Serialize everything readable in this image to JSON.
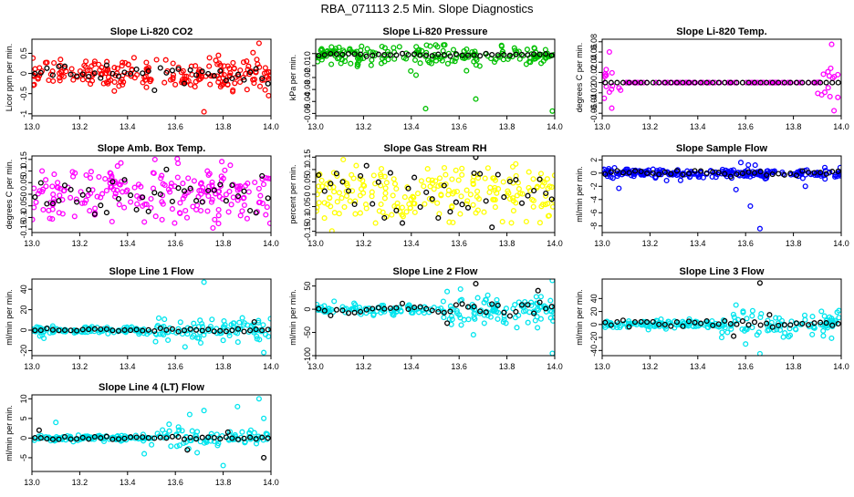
{
  "figure_title": "RBA_071113  2.5 Min. Slope Diagnostics",
  "chart_data": [
    {
      "type": "scatter",
      "title": "Slope Li-820 CO2",
      "xlabel": "",
      "ylabel": "Licor ppm per min.",
      "xlim": [
        13.0,
        14.0
      ],
      "ylim": [
        -1.05,
        0.85
      ],
      "xticks": [
        13.0,
        13.2,
        13.4,
        13.6,
        13.8,
        14.0
      ],
      "xticklabels": [
        "13.0",
        "13.2",
        "13.4",
        "13.6",
        "13.8",
        "14.0"
      ],
      "yticks": [
        -1.0,
        -0.5,
        0.0,
        0.5
      ],
      "yticklabels": [
        "-1",
        "-0.5",
        "0",
        "0.5"
      ],
      "series": [
        {
          "name": "points",
          "color": "#ff0000",
          "base": 0.0,
          "spread": 0.18,
          "outliers": [
            [
              13.95,
              0.75
            ],
            [
              13.72,
              -0.95
            ],
            [
              13.84,
              -0.45
            ],
            [
              13.78,
              0.45
            ],
            [
              13.99,
              -0.55
            ]
          ],
          "n": 220
        },
        {
          "name": "black",
          "color": "#000000",
          "base": 0.0,
          "spread": 0.12,
          "outliers": [],
          "n": 40
        }
      ]
    },
    {
      "type": "scatter",
      "title": "Slope Li-820 Pressure",
      "xlabel": "",
      "ylabel": "kPa per min.",
      "xlim": [
        13.0,
        14.0
      ],
      "ylim": [
        -0.052,
        0.012
      ],
      "xticks": [
        13.0,
        13.2,
        13.4,
        13.6,
        13.8,
        14.0
      ],
      "xticklabels": [
        "13.0",
        "13.2",
        "13.4",
        "13.6",
        "13.8",
        "14.0"
      ],
      "yticks": [
        -0.05,
        -0.04,
        -0.03,
        -0.02,
        -0.01,
        0.0
      ],
      "yticklabels": [
        "-0.05",
        "-0.04",
        "-0.03",
        "-0.02",
        "-0.01",
        "0"
      ],
      "series": [
        {
          "name": "points",
          "color": "#00c000",
          "base": -0.001,
          "spread": 0.004,
          "outliers": [
            [
              13.46,
              -0.046
            ],
            [
              13.67,
              -0.038
            ],
            [
              13.99,
              -0.048
            ],
            [
              13.42,
              -0.018
            ]
          ],
          "n": 200
        },
        {
          "name": "black",
          "color": "#000000",
          "base": -0.001,
          "spread": 0.0008,
          "outliers": [],
          "n": 40
        }
      ]
    },
    {
      "type": "scatter",
      "title": "Slope Li-820 Temp.",
      "xlabel": "",
      "ylabel": "degrees C per min.",
      "xlim": [
        13.0,
        14.0
      ],
      "ylim": [
        -0.065,
        0.085
      ],
      "xticks": [
        13.0,
        13.2,
        13.4,
        13.6,
        13.8,
        14.0
      ],
      "xticklabels": [
        "13.0",
        "13.2",
        "13.4",
        "13.6",
        "13.8",
        "14.0"
      ],
      "yticks": [
        -0.06,
        -0.04,
        -0.02,
        0.0,
        0.02,
        0.04,
        0.06,
        0.08
      ],
      "yticklabels": [
        "-0.06",
        "-0.04",
        "-0.02",
        "0",
        "0.02",
        "0.04",
        "0.06",
        "0.08"
      ],
      "series": [
        {
          "name": "points",
          "color": "#ff00ff",
          "base": 0.0,
          "spread": 0.02,
          "outliers": [
            [
              13.03,
              0.06
            ],
            [
              13.04,
              -0.05
            ],
            [
              13.96,
              0.075
            ],
            [
              13.97,
              -0.055
            ]
          ],
          "n": 120
        },
        {
          "name": "black",
          "color": "#000000",
          "base": 0.0,
          "spread": 0.0,
          "outliers": [],
          "n": 40
        }
      ]
    },
    {
      "type": "scatter",
      "title": "Slope Amb. Box Temp.",
      "xlabel": "",
      "ylabel": "degrees C per min.",
      "xlim": [
        13.0,
        14.0
      ],
      "ylim": [
        -0.165,
        0.165
      ],
      "xticks": [
        13.0,
        13.2,
        13.4,
        13.6,
        13.8,
        14.0
      ],
      "xticklabels": [
        "13.0",
        "13.2",
        "13.4",
        "13.6",
        "13.8",
        "14.0"
      ],
      "yticks": [
        -0.15,
        -0.1,
        -0.05,
        0.0,
        0.05,
        0.1,
        0.15
      ],
      "yticklabels": [
        "-0.15",
        "-0.1",
        "-0.05",
        "0",
        "0.05",
        "0.1",
        "0.15"
      ],
      "series": [
        {
          "name": "points",
          "color": "#ff00ff",
          "base": 0.0,
          "spread": 0.06,
          "outliers": [],
          "n": 220
        },
        {
          "name": "black",
          "color": "#000000",
          "base": 0.0,
          "spread": 0.05,
          "outliers": [],
          "n": 40
        }
      ]
    },
    {
      "type": "scatter",
      "title": "Slope Gas Stream RH",
      "xlabel": "",
      "ylabel": "percent per min.",
      "xlim": [
        13.0,
        14.0
      ],
      "ylim": [
        -0.155,
        0.155
      ],
      "xticks": [
        13.0,
        13.2,
        13.4,
        13.6,
        13.8,
        14.0
      ],
      "xticklabels": [
        "13.0",
        "13.2",
        "13.4",
        "13.6",
        "13.8",
        "14.0"
      ],
      "yticks": [
        -0.15,
        -0.1,
        -0.05,
        0.0,
        0.05,
        0.1,
        0.15
      ],
      "yticklabels": [
        "-0.15",
        "-0.1",
        "-0.05",
        "0",
        "0.05",
        "0.1",
        "0.15"
      ],
      "series": [
        {
          "name": "points",
          "color": "#ffff00",
          "base": 0.0,
          "spread": 0.06,
          "outliers": [],
          "n": 220
        },
        {
          "name": "black",
          "color": "#000000",
          "base": 0.0,
          "spread": 0.06,
          "outliers": [
            [
              13.67,
              0.15
            ]
          ],
          "n": 40
        }
      ]
    },
    {
      "type": "scatter",
      "title": "Slope Sample Flow",
      "xlabel": "",
      "ylabel": "ml/min per min.",
      "xlim": [
        13.0,
        14.0
      ],
      "ylim": [
        -9,
        2.6
      ],
      "xticks": [
        13.0,
        13.2,
        13.4,
        13.6,
        13.8,
        14.0
      ],
      "xticklabels": [
        "13.0",
        "13.2",
        "13.4",
        "13.6",
        "13.8",
        "14.0"
      ],
      "yticks": [
        -8,
        -6,
        -4,
        -2,
        0,
        2
      ],
      "yticklabels": [
        "-8",
        "-6",
        "-4",
        "-2",
        "0",
        "2"
      ],
      "series": [
        {
          "name": "points",
          "color": "#0000ff",
          "base": 0.0,
          "spread": 0.35,
          "outliers": [
            [
              13.62,
              -5.0
            ],
            [
              13.66,
              -8.4
            ],
            [
              13.58,
              1.6
            ],
            [
              13.64,
              1.2
            ],
            [
              13.07,
              -2.3
            ],
            [
              13.85,
              -2.0
            ],
            [
              13.56,
              -2.5
            ]
          ],
          "n": 240
        },
        {
          "name": "black",
          "color": "#000000",
          "base": 0.0,
          "spread": 0.2,
          "outliers": [],
          "n": 40
        }
      ]
    },
    {
      "type": "scatter",
      "title": "Slope Line 1 Flow",
      "xlabel": "",
      "ylabel": "ml/min per min.",
      "xlim": [
        13.0,
        14.0
      ],
      "ylim": [
        -25,
        50
      ],
      "xticks": [
        13.0,
        13.2,
        13.4,
        13.6,
        13.8,
        14.0
      ],
      "xticklabels": [
        "13.0",
        "13.2",
        "13.4",
        "13.6",
        "13.8",
        "14.0"
      ],
      "yticks": [
        -20,
        0,
        20,
        40
      ],
      "yticklabels": [
        "-20",
        "0",
        "20",
        "40"
      ],
      "series": [
        {
          "name": "points",
          "color": "#00e5ee",
          "base": 0.0,
          "spread": 3.5,
          "outliers": [
            [
              13.72,
              47
            ],
            [
              13.97,
              -22
            ],
            [
              13.8,
              -10
            ],
            [
              13.88,
              12
            ],
            [
              13.05,
              -8
            ]
          ],
          "n": 200
        },
        {
          "name": "black",
          "color": "#000000",
          "base": 0.0,
          "spread": 0.8,
          "outliers": [
            [
              13.93,
              8
            ]
          ],
          "n": 40
        }
      ]
    },
    {
      "type": "scatter",
      "title": "Slope Line 2 Flow",
      "xlabel": "",
      "ylabel": "ml/min per min.",
      "xlim": [
        13.0,
        14.0
      ],
      "ylim": [
        -100,
        65
      ],
      "xticks": [
        13.0,
        13.2,
        13.4,
        13.6,
        13.8,
        14.0
      ],
      "xticklabels": [
        "13.0",
        "13.2",
        "13.4",
        "13.6",
        "13.8",
        "14.0"
      ],
      "yticks": [
        -100,
        -50,
        0,
        50
      ],
      "yticklabels": [
        "-100",
        "-50",
        "0",
        "50"
      ],
      "series": [
        {
          "name": "points",
          "color": "#00e5ee",
          "base": 0.0,
          "spread": 10,
          "outliers": [
            [
              13.99,
              62
            ],
            [
              13.99,
              -95
            ],
            [
              13.66,
              -55
            ],
            [
              13.55,
              38
            ],
            [
              13.72,
              30
            ]
          ],
          "n": 200
        },
        {
          "name": "black",
          "color": "#000000",
          "base": 0.0,
          "spread": 6,
          "outliers": [
            [
              13.67,
              55
            ],
            [
              13.93,
              40
            ],
            [
              13.55,
              -30
            ]
          ],
          "n": 40
        }
      ]
    },
    {
      "type": "scatter",
      "title": "Slope Line 3 Flow",
      "xlabel": "",
      "ylabel": "ml/min per min.",
      "xlim": [
        13.0,
        14.0
      ],
      "ylim": [
        -48,
        70
      ],
      "xticks": [
        13.0,
        13.2,
        13.4,
        13.6,
        13.8,
        14.0
      ],
      "xticklabels": [
        "13.0",
        "13.2",
        "13.4",
        "13.6",
        "13.8",
        "14.0"
      ],
      "yticks": [
        -40,
        -20,
        0,
        20,
        40
      ],
      "yticklabels": [
        "-40",
        "-20",
        "0",
        "20",
        "40"
      ],
      "series": [
        {
          "name": "points",
          "color": "#00e5ee",
          "base": 0.0,
          "spread": 6,
          "outliers": [
            [
              13.66,
              -45
            ],
            [
              13.56,
              30
            ],
            [
              13.6,
              -30
            ],
            [
              13.5,
              -20
            ]
          ],
          "n": 200
        },
        {
          "name": "black",
          "color": "#000000",
          "base": 0.0,
          "spread": 3,
          "outliers": [
            [
              13.66,
              64
            ],
            [
              13.55,
              -18
            ],
            [
              13.7,
              15
            ]
          ],
          "n": 40
        }
      ]
    },
    {
      "type": "scatter",
      "title": "Slope Line 4 (LT) Flow",
      "xlabel": "",
      "ylabel": "ml/min per min.",
      "xlim": [
        13.0,
        14.0
      ],
      "ylim": [
        -8.5,
        11
      ],
      "xticks": [
        13.0,
        13.2,
        13.4,
        13.6,
        13.8,
        14.0
      ],
      "xticklabels": [
        "13.0",
        "13.2",
        "13.4",
        "13.6",
        "13.8",
        "14.0"
      ],
      "yticks": [
        -5,
        0,
        5,
        10
      ],
      "yticklabels": [
        "-5",
        "0",
        "5",
        "10"
      ],
      "series": [
        {
          "name": "points",
          "color": "#00e5ee",
          "base": 0.0,
          "spread": 0.7,
          "outliers": [
            [
              13.95,
              10
            ],
            [
              13.86,
              8
            ],
            [
              13.72,
              7
            ],
            [
              13.8,
              -7
            ],
            [
              13.97,
              5
            ],
            [
              13.1,
              4
            ],
            [
              13.47,
              -4
            ],
            [
              13.66,
              6
            ]
          ],
          "n": 200
        },
        {
          "name": "black",
          "color": "#000000",
          "base": 0.0,
          "spread": 0.3,
          "outliers": [
            [
              13.03,
              2
            ],
            [
              13.65,
              -3
            ],
            [
              13.97,
              -5
            ],
            [
              13.82,
              1.5
            ]
          ],
          "n": 40
        }
      ]
    }
  ]
}
